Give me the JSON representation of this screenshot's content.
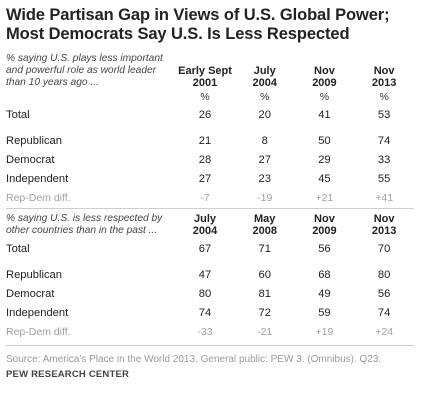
{
  "title_line1": "Wide Partisan Gap in Views of U.S. Global Power;",
  "title_line2": "Most Democrats Say U.S. Is Less Respected",
  "chart_data": [
    {
      "type": "table",
      "question": "% saying U.S. plays less important and powerful role as world leader than 10 years ago ...",
      "columns": [
        [
          "Early Sept",
          "2001"
        ],
        [
          "July",
          "2004"
        ],
        [
          "Nov",
          "2009"
        ],
        [
          "Nov",
          "2013"
        ]
      ],
      "unit_row": [
        "%",
        "%",
        "%",
        "%"
      ],
      "rows": [
        {
          "label": "Total",
          "values": [
            "26",
            "20",
            "41",
            "53"
          ]
        },
        {
          "label": "Republican",
          "values": [
            "21",
            "8",
            "50",
            "74"
          ]
        },
        {
          "label": "Democrat",
          "values": [
            "28",
            "27",
            "29",
            "33"
          ]
        },
        {
          "label": "Independent",
          "values": [
            "27",
            "23",
            "45",
            "55"
          ]
        },
        {
          "label": "Rep-Dem diff.",
          "values": [
            "-7",
            "-19",
            "+21",
            "+41"
          ]
        }
      ]
    },
    {
      "type": "table",
      "question": "% saying U.S. is less respected by other countries than in the past ...",
      "columns": [
        [
          "July",
          "2004"
        ],
        [
          "May",
          "2008"
        ],
        [
          "Nov",
          "2009"
        ],
        [
          "Nov",
          "2013"
        ]
      ],
      "rows": [
        {
          "label": "Total",
          "values": [
            "67",
            "71",
            "56",
            "70"
          ]
        },
        {
          "label": "Republican",
          "values": [
            "47",
            "60",
            "68",
            "80"
          ]
        },
        {
          "label": "Democrat",
          "values": [
            "80",
            "81",
            "49",
            "56"
          ]
        },
        {
          "label": "Independent",
          "values": [
            "74",
            "72",
            "59",
            "74"
          ]
        },
        {
          "label": "Rep-Dem diff.",
          "values": [
            "-33",
            "-21",
            "+19",
            "+24"
          ]
        }
      ]
    }
  ],
  "source": "Source: America's Place in the World 2013. General public: PEW 3. (Omnibus). Q23.",
  "org": "PEW RESEARCH CENTER",
  "colors": {
    "text": "#222222",
    "muted": "#a0a0a0",
    "rule": "#cfcfcf"
  }
}
